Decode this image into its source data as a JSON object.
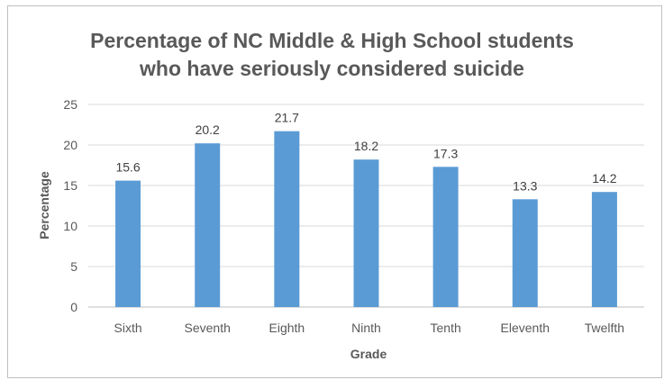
{
  "chart_data": {
    "type": "bar",
    "title_lines": [
      "Percentage of NC Middle & High School students",
      "who have seriously considered suicide"
    ],
    "xlabel": "Grade",
    "ylabel": "Percentage",
    "categories": [
      "Sixth",
      "Seventh",
      "Eighth",
      "Ninth",
      "Tenth",
      "Eleventh",
      "Twelfth"
    ],
    "values": [
      15.6,
      20.2,
      21.7,
      18.2,
      17.3,
      13.3,
      14.2
    ],
    "value_labels": [
      "15.6",
      "20.2",
      "21.7",
      "18.2",
      "17.3",
      "13.3",
      "14.2"
    ],
    "ylim": [
      0,
      25
    ],
    "yticks": [
      "0",
      "5",
      "10",
      "15",
      "20",
      "25"
    ],
    "ytick_values": [
      0,
      5,
      10,
      15,
      20,
      25
    ],
    "grid": true,
    "legend": "none",
    "colors": {
      "bar": "#5b9bd5",
      "grid": "#d9d9d9",
      "axis": "#bfbfbf"
    }
  }
}
